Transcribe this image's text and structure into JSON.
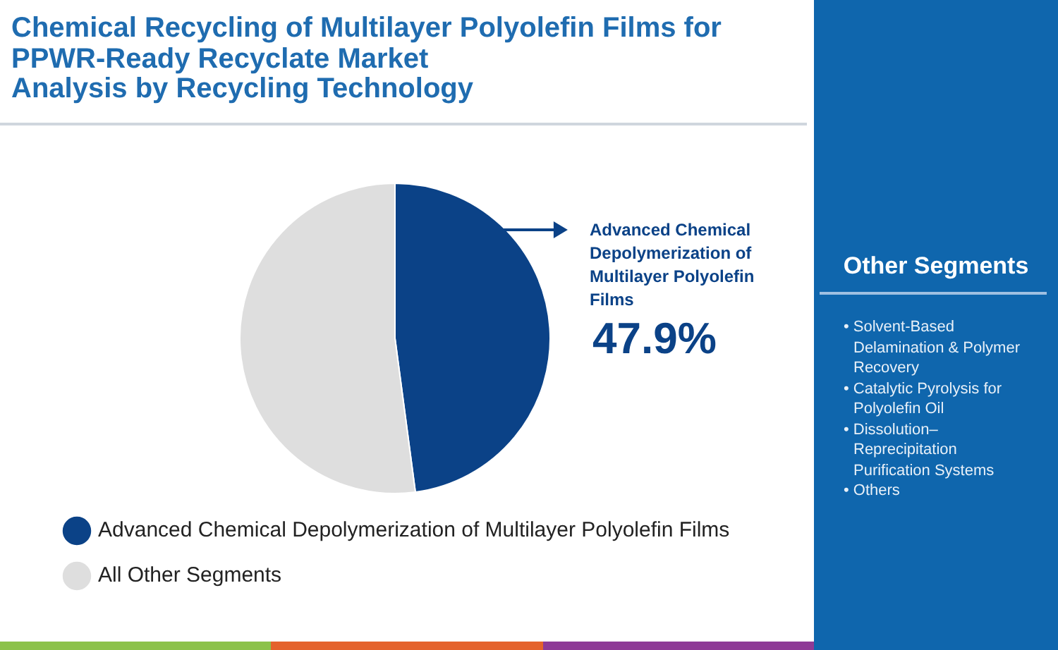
{
  "chart_data": [
    {
      "type": "pie",
      "title": "Chemical Recycling of Multilayer Polyolefin Films for PPWR-Ready Recyclate Market",
      "subtitle": "Analysis by Recycling Technology",
      "categories": [
        "Advanced Chemical Depolymerization of Multilayer Polyolefin Films",
        "All Other Segments"
      ],
      "values": [
        47.9,
        52.1
      ],
      "colors": [
        "#0b4287",
        "#dedede"
      ],
      "value_labels": [
        "47.9%",
        null
      ],
      "legend": "bottom left"
    },
    {
      "type": "other",
      "title": "Other Segments",
      "annotations": [
        "• Solvent-Based Delamination & Polymer Recovery",
        "• Catalytic Pyrolysis for Polyolefin Oil",
        "• Dissolution–Reprecipitation Purification Systems",
        "• Others"
      ]
    }
  ]
}
